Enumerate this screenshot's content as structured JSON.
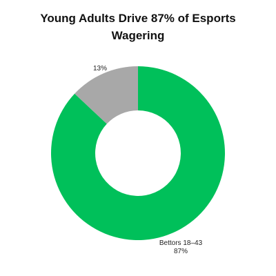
{
  "chart_data": {
    "type": "pie",
    "variant": "donut",
    "title": "Young Adults Drive 87% of Esports Wagering",
    "slices": [
      {
        "label": "Bettors 18–43",
        "value": 87,
        "value_label": "87%",
        "color": "#00c05a"
      },
      {
        "label": "",
        "value": 13,
        "value_label": "13%",
        "color": "#a8a8a8"
      }
    ],
    "legend": "none",
    "background": "#ffffff"
  }
}
